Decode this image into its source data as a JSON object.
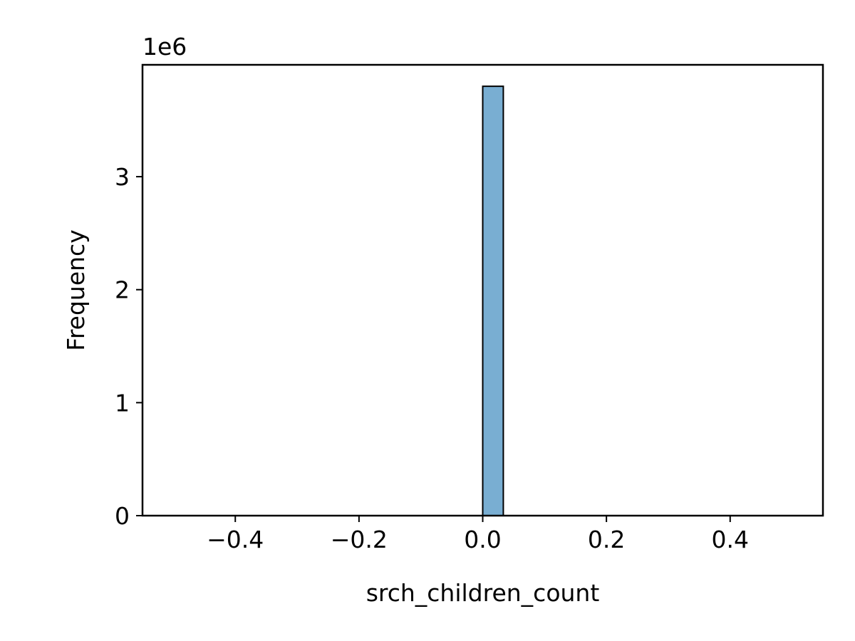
{
  "chart_data": {
    "type": "bar",
    "title": "",
    "xlabel": "srch_children_count",
    "ylabel": "Frequency",
    "y_offset_label": "1e6",
    "y_scale_factor": 1000000,
    "xlim": [
      -0.55,
      0.55
    ],
    "ylim": [
      0,
      3990000
    ],
    "x_ticks": [
      -0.4,
      -0.2,
      0.0,
      0.2,
      0.4
    ],
    "x_tick_labels": [
      "−0.4",
      "−0.2",
      "0.0",
      "0.2",
      "0.4"
    ],
    "y_ticks": [
      0,
      1000000,
      2000000,
      3000000
    ],
    "y_tick_labels": [
      "0",
      "1",
      "2",
      "3"
    ],
    "bins": [
      {
        "x0": 0.0,
        "x1": 0.0333,
        "count": 3800000
      }
    ],
    "grid": false,
    "bar_color": "#79aed2",
    "bar_edge_color": "#000000"
  }
}
